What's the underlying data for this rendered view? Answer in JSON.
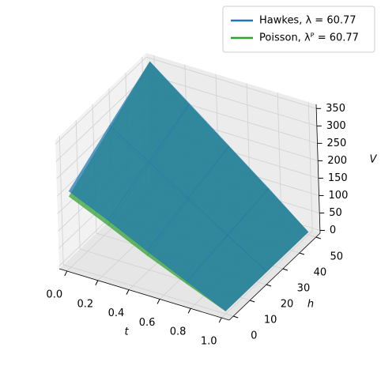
{
  "chart_data": {
    "type": "surface3d",
    "xlabel": "t",
    "ylabel": "h",
    "zlabel": "V",
    "t": [
      0,
      0.25,
      0.5,
      0.75,
      1
    ],
    "h": [
      0,
      25,
      50
    ],
    "series": [
      {
        "name": "Hawkes, λ = 60.77",
        "color": "#1f77b4",
        "values": [
          [
            210,
            285,
            355
          ],
          [
            160,
            215,
            268
          ],
          [
            105,
            145,
            180
          ],
          [
            52,
            72,
            92
          ],
          [
            0,
            0,
            0
          ]
        ]
      },
      {
        "name": "Poisson, λᴾ = 60.77",
        "color": "#2ca02c",
        "values": [
          [
            195,
            275,
            355
          ],
          [
            145,
            205,
            265
          ],
          [
            92,
            138,
            178
          ],
          [
            45,
            68,
            90
          ],
          [
            0,
            0,
            0
          ]
        ]
      }
    ],
    "xlim": [
      -0.05,
      1.05
    ],
    "ylim": [
      -2.5,
      52.5
    ],
    "zlim": [
      -8,
      362
    ],
    "xticks": [
      {
        "value": 0,
        "label": "0.0"
      },
      {
        "value": 0.2,
        "label": "0.2"
      },
      {
        "value": 0.4,
        "label": "0.4"
      },
      {
        "value": 0.6,
        "label": "0.6"
      },
      {
        "value": 0.8,
        "label": "0.8"
      },
      {
        "value": 1,
        "label": "1.0"
      }
    ],
    "yticks": [
      0,
      10,
      20,
      30,
      40,
      50
    ],
    "zticks": [
      0,
      50,
      100,
      150,
      200,
      250,
      300,
      350
    ],
    "grid": true,
    "legend": "upper right"
  }
}
